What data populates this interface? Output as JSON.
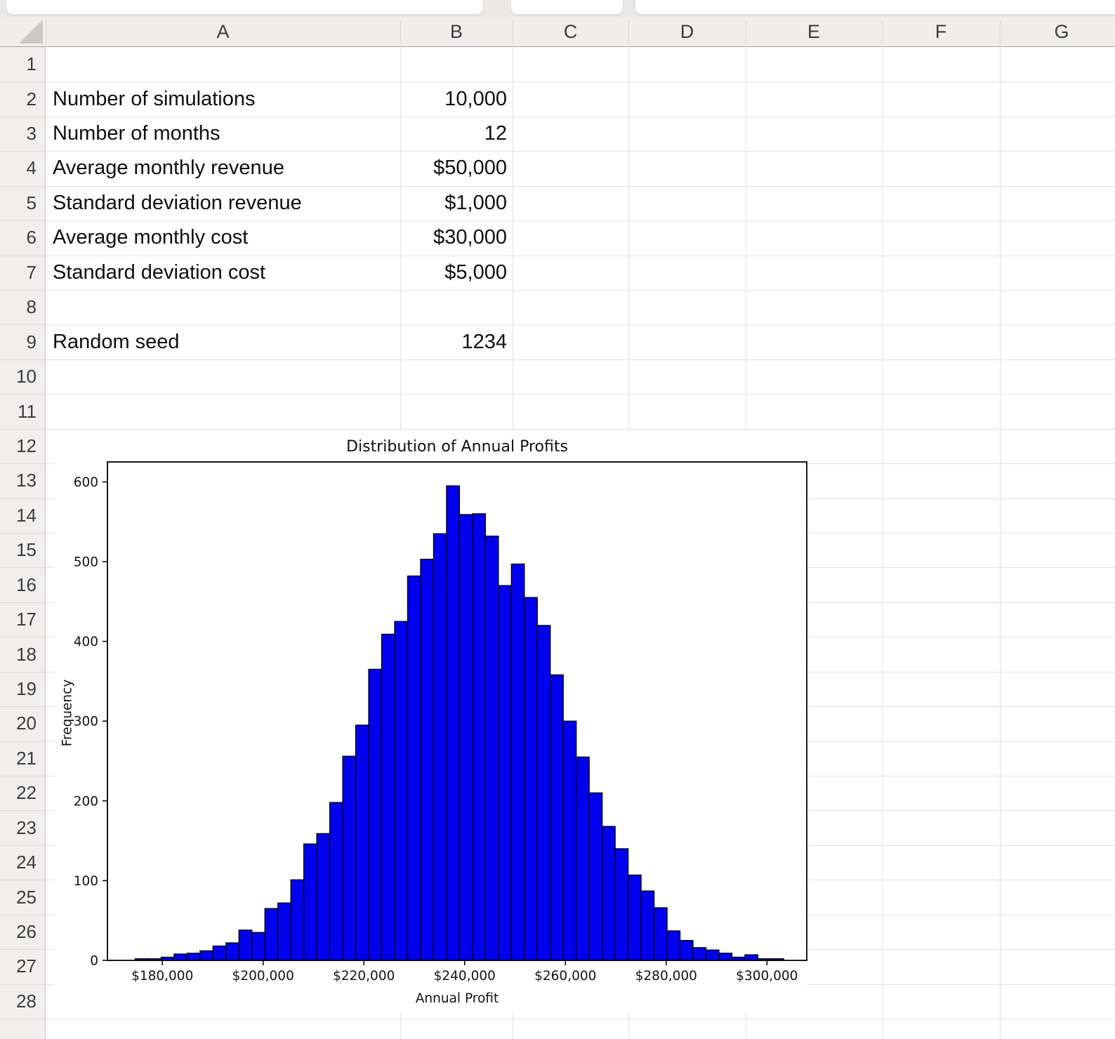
{
  "app": {
    "kind": "spreadsheet",
    "background_color": "#ebe9e8",
    "grid_color": "#e4e2e0"
  },
  "spreadsheet": {
    "columns": [
      "A",
      "B",
      "C",
      "D",
      "E",
      "F",
      "G"
    ],
    "row_numbers": [
      "1",
      "2",
      "3",
      "4",
      "5",
      "6",
      "7",
      "8",
      "9",
      "10",
      "11",
      "12",
      "13",
      "14",
      "15",
      "16",
      "17",
      "18",
      "19",
      "20",
      "21",
      "22",
      "23",
      "24",
      "25",
      "26",
      "27",
      "28"
    ],
    "cells": [
      {
        "row": 2,
        "label": "Number of simulations",
        "value": "10,000"
      },
      {
        "row": 3,
        "label": "Number of months",
        "value": "12"
      },
      {
        "row": 4,
        "label": "Average monthly revenue",
        "value": "$50,000"
      },
      {
        "row": 5,
        "label": "Standard deviation revenue",
        "value": "$1,000"
      },
      {
        "row": 6,
        "label": "Average monthly cost",
        "value": "$30,000"
      },
      {
        "row": 7,
        "label": "Standard deviation cost",
        "value": "$5,000"
      },
      {
        "row": 9,
        "label": "Random seed",
        "value": "1234"
      }
    ]
  },
  "chart_data": {
    "type": "bar",
    "subtype": "histogram",
    "title": "Distribution of Annual Profits",
    "xlabel": "Annual Profit",
    "ylabel": "Frequency",
    "x_tick_labels": [
      "$180,000",
      "$200,000",
      "$220,000",
      "$240,000",
      "$260,000",
      "$280,000",
      "$300,000"
    ],
    "x_tick_values": [
      180000,
      200000,
      220000,
      240000,
      260000,
      280000,
      300000
    ],
    "y_ticks": [
      0,
      100,
      200,
      300,
      400,
      500,
      600
    ],
    "xlim": [
      169100,
      307900
    ],
    "ylim": [
      0,
      625
    ],
    "bin_start": 174600,
    "bin_width": 2575,
    "frequencies": [
      2,
      2,
      4,
      8,
      9,
      12,
      18,
      22,
      38,
      35,
      65,
      72,
      101,
      146,
      159,
      198,
      256,
      295,
      365,
      409,
      425,
      482,
      503,
      535,
      595,
      559,
      560,
      532,
      470,
      497,
      455,
      420,
      358,
      300,
      255,
      210,
      168,
      140,
      107,
      87,
      66,
      37,
      25,
      16,
      13,
      9,
      4,
      7,
      2,
      2
    ],
    "bar_color": "#0000ee",
    "bar_edge_color": "#000000",
    "grid": "off",
    "legend": "none"
  }
}
